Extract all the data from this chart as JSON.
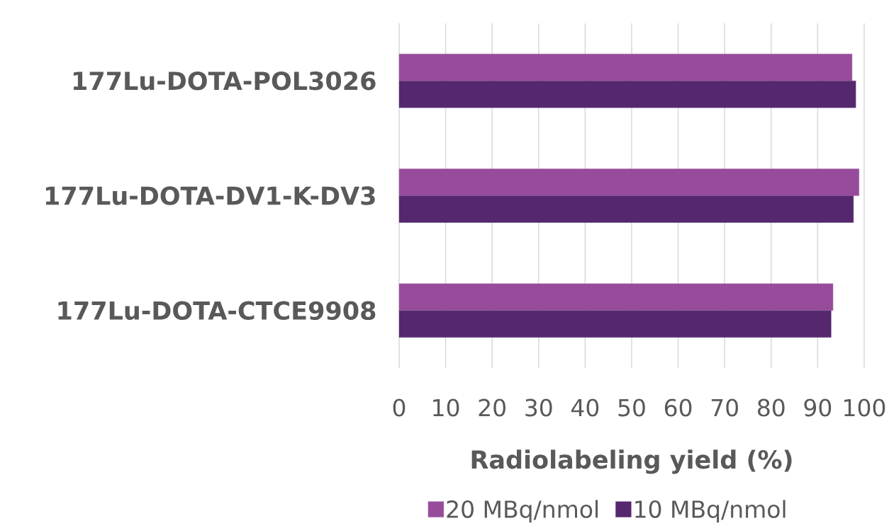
{
  "chart_data": {
    "type": "bar",
    "orientation": "horizontal",
    "categories": [
      "177Lu-DOTA-POL3026",
      "177Lu-DOTA-DV1-K-DV3",
      "177Lu-DOTA-CTCE9908"
    ],
    "series": [
      {
        "name": "20 MBq/nmol",
        "color": "#974c9b",
        "values": [
          97.4,
          98.9,
          93.3
        ]
      },
      {
        "name": "10 MBq/nmol",
        "color": "#54276e",
        "values": [
          98.2,
          97.7,
          92.9
        ]
      }
    ],
    "xlabel": "Radiolabeling yield (%)",
    "xlim": [
      0,
      100
    ],
    "xticks": [
      0,
      10,
      20,
      30,
      40,
      50,
      60,
      70,
      80,
      90,
      100
    ],
    "grid": "x",
    "legend": "bottom"
  }
}
